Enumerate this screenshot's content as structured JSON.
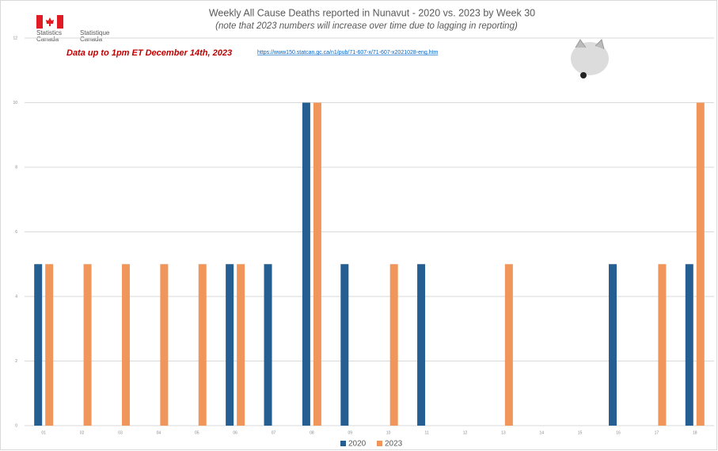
{
  "header": {
    "logo_en": [
      "Statistics",
      "Canada"
    ],
    "logo_fr": [
      "Statistique",
      "Canada"
    ],
    "note": "Data up to 1pm ET December 14th, 2023",
    "link": "https://www150.statcan.gc.ca/n1/pub/71-607-x/71-607-x2021028-eng.htm"
  },
  "chart_data": {
    "type": "bar",
    "title": "Weekly All Cause Deaths reported in Nunavut - 2020 vs. 2023 by Week 30",
    "subtitle": "(note that 2023 numbers will increase over time due to lagging in reporting)",
    "categories": [
      "01",
      "02",
      "03",
      "04",
      "05",
      "06",
      "07",
      "08",
      "09",
      "10",
      "11",
      "12",
      "13",
      "14",
      "15",
      "16",
      "17",
      "18"
    ],
    "series": [
      {
        "name": "2020",
        "color": "#255e91",
        "values": [
          5,
          0,
          0,
          0,
          0,
          5,
          5,
          10,
          5,
          0,
          5,
          0,
          0,
          0,
          0,
          5,
          0,
          5
        ]
      },
      {
        "name": "2023",
        "color": "#f0965a",
        "values": [
          5,
          5,
          5,
          5,
          5,
          5,
          0,
          10,
          0,
          5,
          0,
          0,
          5,
          0,
          0,
          0,
          5,
          10
        ]
      }
    ],
    "ylim": [
      0,
      12
    ],
    "yticks": [
      0,
      2,
      4,
      6,
      8,
      10,
      12
    ],
    "grid": true,
    "legend": "bottom"
  }
}
